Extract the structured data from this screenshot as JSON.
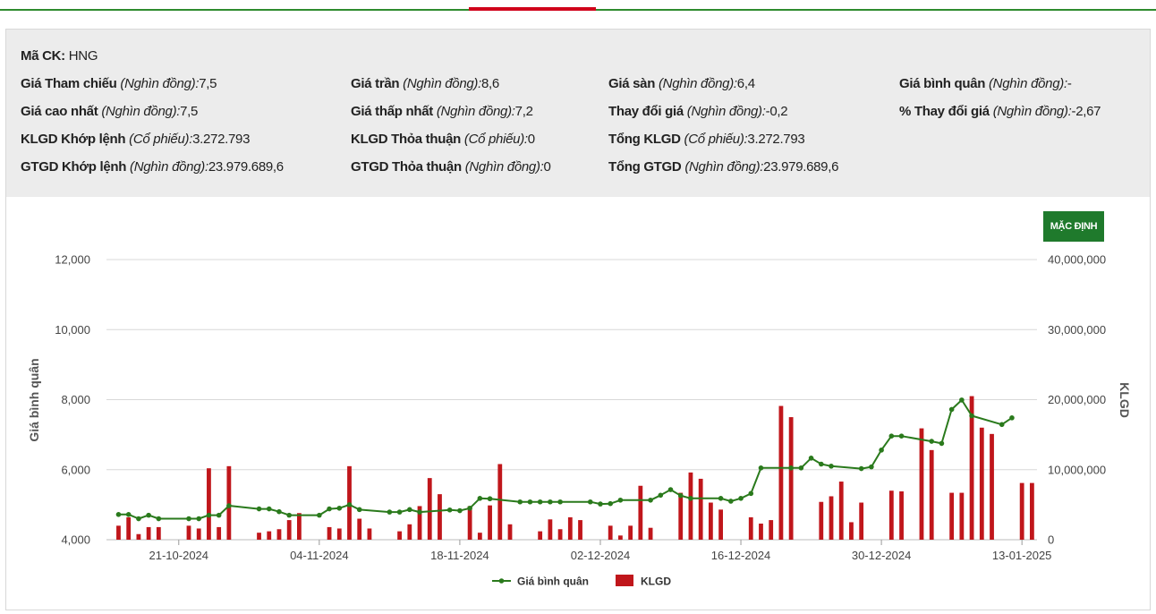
{
  "stock": {
    "code_label": "Mã CK:",
    "code_value": "HNG",
    "fields": [
      {
        "label": "Giá Tham chiếu",
        "unit": "(Nghìn đồng):",
        "value": "7,5"
      },
      {
        "label": "Giá trần",
        "unit": "(Nghìn đồng):",
        "value": "8,6"
      },
      {
        "label": "Giá sàn",
        "unit": "(Nghìn đồng):",
        "value": "6,4"
      },
      {
        "label": "Giá bình quân",
        "unit": "(Nghìn đồng):",
        "value": "-"
      },
      {
        "label": "Giá cao nhất",
        "unit": "(Nghìn đồng):",
        "value": "7,5"
      },
      {
        "label": "Giá thấp nhất",
        "unit": "(Nghìn đồng):",
        "value": "7,2"
      },
      {
        "label": "Thay đổi giá",
        "unit": "(Nghìn đồng):",
        "value": "-0,2"
      },
      {
        "label": "% Thay đổi giá",
        "unit": "(Nghìn đồng):",
        "value": "-2,67"
      },
      {
        "label": "KLGD Khớp lệnh",
        "unit": "(Cổ phiếu):",
        "value": "3.272.793"
      },
      {
        "label": "KLGD Thỏa thuận",
        "unit": "(Cổ phiếu):",
        "value": "0"
      },
      {
        "label": "Tổng KLGD",
        "unit": "(Cổ phiếu):",
        "value": "3.272.793"
      },
      {
        "label": "GTGD Khớp lệnh",
        "unit": "(Nghìn đồng):",
        "value": "23.979.689,6"
      },
      {
        "label": "GTGD Thỏa thuận",
        "unit": "(Nghìn đồng):",
        "value": "0"
      },
      {
        "label": "Tổng GTGD",
        "unit": "(Nghìn đồng):",
        "value": "23.979.689,6"
      }
    ]
  },
  "controls": {
    "default_button": "MẶC ĐỊNH"
  },
  "colors": {
    "line": "#2a7a1c",
    "bar": "#c0161b",
    "button": "#1f7a2c",
    "header_bg": "#ececec"
  },
  "chart_data": {
    "type": "bar+line",
    "ylabel_left": "Giá bình quân",
    "ylabel_right": "KLGD",
    "left_ticks": [
      "4,000",
      "6,000",
      "8,000",
      "10,000",
      "12,000"
    ],
    "left_range": [
      4000,
      12000
    ],
    "right_ticks": [
      "0",
      "10,000,000",
      "20,000,000",
      "30,000,000",
      "40,000,000"
    ],
    "right_range": [
      0,
      40000000
    ],
    "x_labels": [
      {
        "day": 6,
        "label": "21-10-2024"
      },
      {
        "day": 20,
        "label": "04-11-2024"
      },
      {
        "day": 34,
        "label": "18-11-2024"
      },
      {
        "day": 48,
        "label": "02-12-2024"
      },
      {
        "day": 62,
        "label": "16-12-2024"
      },
      {
        "day": 76,
        "label": "30-12-2024"
      },
      {
        "day": 90,
        "label": "13-01-2025"
      }
    ],
    "day_range": [
      -1.2,
      91.5
    ],
    "legend": [
      "Giá bình quân",
      "KLGD"
    ],
    "series": [
      {
        "name": "Giá bình quân",
        "type": "line",
        "points": [
          [
            0,
            4720
          ],
          [
            1,
            4720
          ],
          [
            2,
            4600
          ],
          [
            3,
            4700
          ],
          [
            4,
            4600
          ],
          [
            7,
            4600
          ],
          [
            8,
            4600
          ],
          [
            9,
            4700
          ],
          [
            10,
            4700
          ],
          [
            11,
            4970
          ],
          [
            14,
            4880
          ],
          [
            15,
            4880
          ],
          [
            16,
            4800
          ],
          [
            17,
            4700
          ],
          [
            20,
            4700
          ],
          [
            21,
            4880
          ],
          [
            22,
            4900
          ],
          [
            23,
            5000
          ],
          [
            24,
            4860
          ],
          [
            27,
            4790
          ],
          [
            28,
            4790
          ],
          [
            29,
            4860
          ],
          [
            30,
            4790
          ],
          [
            33,
            4850
          ],
          [
            34,
            4830
          ],
          [
            35,
            4900
          ],
          [
            36,
            5180
          ],
          [
            37,
            5170
          ],
          [
            40,
            5080
          ],
          [
            41,
            5080
          ],
          [
            42,
            5080
          ],
          [
            43,
            5080
          ],
          [
            44,
            5080
          ],
          [
            47,
            5080
          ],
          [
            48,
            5020
          ],
          [
            49,
            5030
          ],
          [
            50,
            5130
          ],
          [
            53,
            5130
          ],
          [
            54,
            5270
          ],
          [
            55,
            5430
          ],
          [
            56,
            5260
          ],
          [
            57,
            5180
          ],
          [
            60,
            5180
          ],
          [
            61,
            5100
          ],
          [
            62,
            5180
          ],
          [
            63,
            5320
          ],
          [
            64,
            6050
          ],
          [
            67,
            6050
          ],
          [
            68,
            6050
          ],
          [
            69,
            6330
          ],
          [
            70,
            6160
          ],
          [
            71,
            6100
          ],
          [
            74,
            6030
          ],
          [
            75,
            6080
          ],
          [
            76,
            6560
          ],
          [
            77,
            6960
          ],
          [
            78,
            6960
          ],
          [
            81,
            6810
          ],
          [
            82,
            6750
          ],
          [
            83,
            7720
          ],
          [
            84,
            7990
          ],
          [
            85,
            7540
          ],
          [
            88,
            7290
          ],
          [
            89,
            7480
          ]
        ]
      },
      {
        "name": "KLGD",
        "type": "bar",
        "points": [
          [
            0,
            2000000
          ],
          [
            1,
            3200000
          ],
          [
            2,
            800000
          ],
          [
            3,
            1800000
          ],
          [
            4,
            1800000
          ],
          [
            7,
            2000000
          ],
          [
            8,
            1600000
          ],
          [
            9,
            10200000
          ],
          [
            10,
            1800000
          ],
          [
            11,
            10500000
          ],
          [
            14,
            1000000
          ],
          [
            15,
            1200000
          ],
          [
            16,
            1500000
          ],
          [
            17,
            2800000
          ],
          [
            18,
            3800000
          ],
          [
            21,
            1800000
          ],
          [
            22,
            1600000
          ],
          [
            23,
            10500000
          ],
          [
            24,
            3000000
          ],
          [
            25,
            1600000
          ],
          [
            28,
            1200000
          ],
          [
            29,
            2200000
          ],
          [
            30,
            4800000
          ],
          [
            31,
            8800000
          ],
          [
            32,
            6500000
          ],
          [
            35,
            4800000
          ],
          [
            36,
            1000000
          ],
          [
            37,
            4900000
          ],
          [
            38,
            10800000
          ],
          [
            39,
            2200000
          ],
          [
            42,
            1200000
          ],
          [
            43,
            2900000
          ],
          [
            44,
            1500000
          ],
          [
            45,
            3200000
          ],
          [
            46,
            2800000
          ],
          [
            49,
            2000000
          ],
          [
            50,
            600000
          ],
          [
            51,
            2000000
          ],
          [
            52,
            7700000
          ],
          [
            53,
            1700000
          ],
          [
            56,
            6700000
          ],
          [
            57,
            9600000
          ],
          [
            58,
            8700000
          ],
          [
            59,
            5300000
          ],
          [
            60,
            4300000
          ],
          [
            63,
            3200000
          ],
          [
            64,
            2300000
          ],
          [
            65,
            2800000
          ],
          [
            66,
            19100000
          ],
          [
            67,
            17500000
          ],
          [
            70,
            5400000
          ],
          [
            71,
            6200000
          ],
          [
            72,
            8300000
          ],
          [
            73,
            2500000
          ],
          [
            74,
            5300000
          ],
          [
            77,
            7000000
          ],
          [
            78,
            6900000
          ],
          [
            80,
            15900000
          ],
          [
            81,
            12800000
          ],
          [
            83,
            6700000
          ],
          [
            84,
            6700000
          ],
          [
            85,
            20500000
          ],
          [
            86,
            16000000
          ],
          [
            87,
            15100000
          ],
          [
            90,
            8100000
          ],
          [
            91,
            8100000
          ]
        ]
      }
    ]
  }
}
